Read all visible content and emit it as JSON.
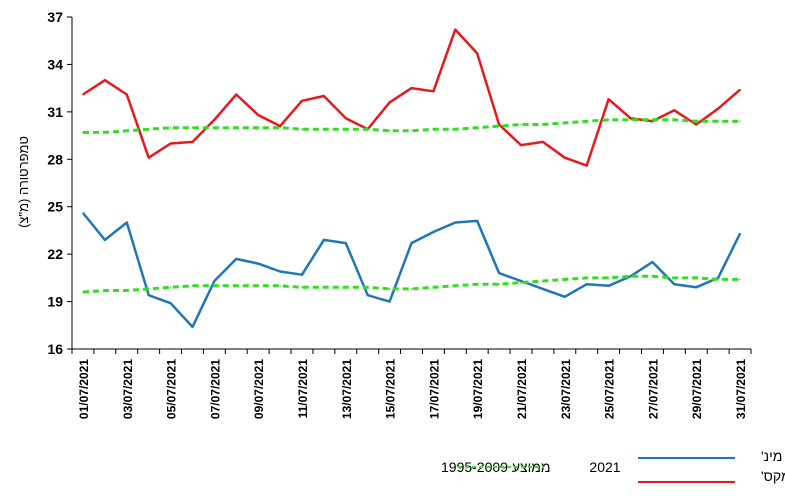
{
  "chart_data": {
    "type": "line",
    "ylabel": "טמפרטורה (מ\"צ)",
    "ylim": [
      16,
      37
    ],
    "yticks": [
      16,
      19,
      22,
      25,
      28,
      31,
      34,
      37
    ],
    "x": [
      "01/07/2021",
      "02/07/2021",
      "03/07/2021",
      "04/07/2021",
      "05/07/2021",
      "06/07/2021",
      "07/07/2021",
      "08/07/2021",
      "09/07/2021",
      "10/07/2021",
      "11/07/2021",
      "12/07/2021",
      "13/07/2021",
      "14/07/2021",
      "15/07/2021",
      "16/07/2021",
      "17/07/2021",
      "18/07/2021",
      "19/07/2021",
      "20/07/2021",
      "21/07/2021",
      "22/07/2021",
      "23/07/2021",
      "24/07/2021",
      "25/07/2021",
      "26/07/2021",
      "27/07/2021",
      "28/07/2021",
      "29/07/2021",
      "30/07/2021",
      "31/07/2021"
    ],
    "xtick_labels": [
      "01/07/2021",
      "03/07/2021",
      "05/07/2021",
      "07/07/2021",
      "09/07/2021",
      "11/07/2021",
      "13/07/2021",
      "15/07/2021",
      "17/07/2021",
      "19/07/2021",
      "21/07/2021",
      "23/07/2021",
      "25/07/2021",
      "27/07/2021",
      "29/07/2021",
      "31/07/2021"
    ],
    "series": [
      {
        "key": "max2021",
        "color": "#e41a1c",
        "style": "solid",
        "values": [
          32.1,
          33.0,
          32.1,
          28.1,
          29.0,
          29.1,
          30.5,
          32.1,
          30.8,
          30.1,
          31.7,
          32.0,
          30.6,
          29.9,
          31.6,
          32.5,
          32.3,
          36.2,
          34.7,
          30.2,
          28.9,
          29.1,
          28.1,
          27.6,
          31.8,
          30.6,
          30.4,
          31.1,
          30.2,
          31.2,
          32.4
        ]
      },
      {
        "key": "min2021",
        "color": "#1f77b4",
        "style": "solid",
        "values": [
          24.6,
          22.9,
          24.0,
          19.4,
          18.9,
          17.4,
          20.3,
          21.7,
          21.4,
          20.9,
          20.7,
          22.9,
          22.7,
          19.4,
          19.0,
          22.7,
          23.4,
          24.0,
          24.1,
          20.8,
          20.3,
          19.8,
          19.3,
          20.1,
          20.0,
          20.6,
          21.5,
          20.1,
          19.9,
          20.5,
          23.3
        ]
      },
      {
        "key": "max_avg",
        "color": "#33dd22",
        "style": "dashed",
        "values": [
          29.7,
          29.7,
          29.8,
          29.9,
          30.0,
          30.0,
          30.0,
          30.0,
          30.0,
          30.0,
          29.9,
          29.9,
          29.9,
          29.9,
          29.8,
          29.8,
          29.9,
          29.9,
          30.0,
          30.1,
          30.2,
          30.2,
          30.3,
          30.4,
          30.5,
          30.5,
          30.5,
          30.5,
          30.4,
          30.4,
          30.4
        ]
      },
      {
        "key": "min_avg",
        "color": "#33dd22",
        "style": "dashed",
        "values": [
          19.6,
          19.7,
          19.7,
          19.8,
          19.9,
          20.0,
          20.0,
          20.0,
          20.0,
          20.0,
          19.9,
          19.9,
          19.9,
          19.9,
          19.8,
          19.8,
          19.9,
          20.0,
          20.1,
          20.1,
          20.2,
          20.3,
          20.4,
          20.5,
          20.5,
          20.6,
          20.6,
          20.5,
          20.5,
          20.4,
          20.4
        ]
      }
    ],
    "legend": {
      "label_min": "מינ'",
      "label_max": "מקס'",
      "year": "2021",
      "avg": "ממוצע 1995-2009",
      "color_min": "#1f77b4",
      "color_max": "#e41a1c",
      "color_avg": "#33dd22"
    }
  }
}
